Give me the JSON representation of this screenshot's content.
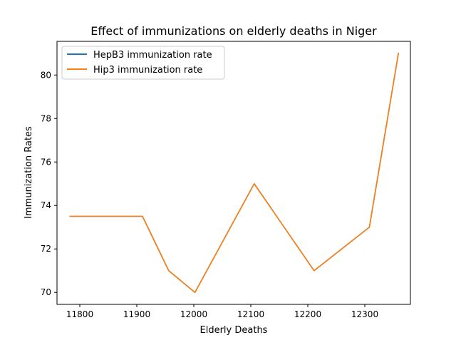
{
  "chart_data": {
    "type": "line",
    "title": "Effect of immunizations on elderly deaths in Niger",
    "xlabel": "Elderly Deaths",
    "ylabel": "Immunization Rates",
    "xlim": [
      11760,
      12380
    ],
    "ylim": [
      69.45,
      81.55
    ],
    "xticks": [
      11800,
      11900,
      12000,
      12100,
      12200,
      12300
    ],
    "yticks": [
      70,
      72,
      74,
      76,
      78,
      80
    ],
    "grid": false,
    "legend_position": "upper-left",
    "x": [
      11783,
      11910,
      11956,
      12002,
      12106,
      12211,
      12308,
      12359
    ],
    "series": [
      {
        "name": "HepB3 immunization rate",
        "color": "#1f77b4",
        "values": [
          73.5,
          73.5,
          71,
          70,
          75,
          71,
          73,
          81
        ]
      },
      {
        "name": "Hip3 immunization rate",
        "color": "#ff7f0e",
        "values": [
          73.5,
          73.5,
          71,
          70,
          75,
          71,
          73,
          81
        ]
      }
    ]
  }
}
